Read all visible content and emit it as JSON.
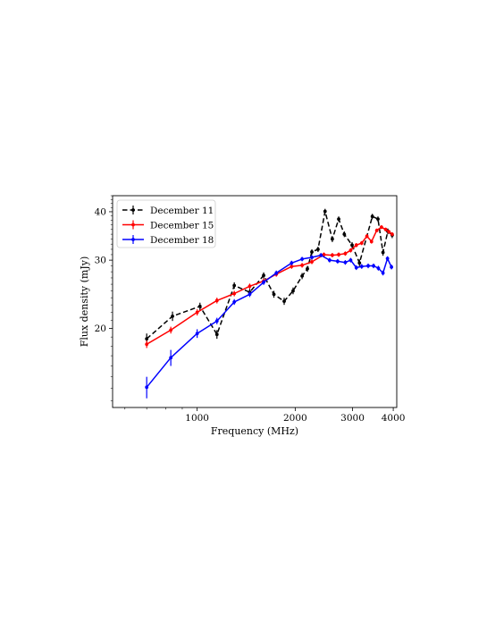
{
  "chart_data": {
    "type": "line",
    "title": "",
    "xlabel": "Frequency (MHz)",
    "ylabel": "Flux density (mJy)",
    "xscale": "log",
    "yscale": "log",
    "xlim": [
      550,
      4100
    ],
    "ylim": [
      12.5,
      44
    ],
    "xticks": [
      {
        "value": 1000,
        "label": "1000"
      },
      {
        "value": 2000,
        "label": "2000"
      },
      {
        "value": 3000,
        "label": "3000"
      },
      {
        "value": 4000,
        "label": "4000"
      }
    ],
    "yticks": [
      {
        "value": 20,
        "label": "20"
      },
      {
        "value": 30,
        "label": "30"
      },
      {
        "value": 40,
        "label": "40"
      }
    ],
    "grid": false,
    "legend_position": "top-left",
    "series": [
      {
        "name": "December 11",
        "color": "#000000",
        "linestyle": "dashed",
        "x": [
          700,
          840,
          1020,
          1150,
          1300,
          1450,
          1600,
          1720,
          1850,
          1970,
          2100,
          2180,
          2250,
          2350,
          2470,
          2600,
          2720,
          2830,
          2990,
          3150,
          3450,
          3590,
          3720,
          3850,
          3970
        ],
        "y": [
          18.8,
          21.5,
          22.8,
          19.3,
          25.8,
          24.8,
          27.4,
          24.5,
          23.5,
          25.0,
          27.3,
          28.5,
          31.5,
          32.0,
          40.1,
          34.0,
          38.3,
          35.0,
          32.8,
          29.5,
          38.9,
          38.3,
          31.4,
          35.6,
          34.8
        ],
        "yerr": [
          0.6,
          0.6,
          0.5,
          0.5,
          0.5,
          0.5,
          0.5,
          0.5,
          0.5,
          0.5,
          0.5,
          0.5,
          0.5,
          0.5,
          0.6,
          0.6,
          0.6,
          0.6,
          0.6,
          0.6,
          0.6,
          0.6,
          0.6,
          0.6,
          0.6
        ]
      },
      {
        "name": "December 15",
        "color": "#ff0000",
        "linestyle": "solid",
        "x": [
          700,
          830,
          1000,
          1150,
          1300,
          1450,
          1600,
          1750,
          1950,
          2100,
          2250,
          2450,
          2600,
          2720,
          2850,
          2960,
          3080,
          3200,
          3320,
          3430,
          3560,
          3680,
          3790,
          3880,
          3970
        ],
        "y": [
          18.2,
          19.8,
          22.0,
          23.6,
          24.6,
          25.7,
          26.5,
          27.6,
          28.9,
          29.1,
          29.7,
          31.0,
          30.9,
          31.0,
          31.2,
          31.8,
          32.8,
          33.2,
          34.6,
          33.5,
          35.8,
          36.5,
          36.0,
          35.5,
          35.0
        ],
        "yerr": [
          0.4,
          0.4,
          0.4,
          0.4,
          0.4,
          0.4,
          0.4,
          0.4,
          0.4,
          0.4,
          0.4,
          0.4,
          0.4,
          0.4,
          0.4,
          0.4,
          0.4,
          0.4,
          0.4,
          0.4,
          0.4,
          0.4,
          0.4,
          0.4,
          0.4
        ]
      },
      {
        "name": "December 18",
        "color": "#0000ff",
        "linestyle": "solid",
        "x": [
          700,
          830,
          1000,
          1150,
          1300,
          1450,
          1600,
          1750,
          1950,
          2100,
          2250,
          2400,
          2550,
          2700,
          2850,
          2960,
          3080,
          3200,
          3350,
          3480,
          3600,
          3720,
          3840,
          3950
        ],
        "y": [
          14.1,
          16.8,
          19.4,
          20.9,
          23.4,
          24.5,
          26.3,
          27.8,
          29.5,
          30.2,
          30.5,
          30.9,
          30.0,
          29.8,
          29.6,
          30.0,
          28.7,
          28.9,
          29.0,
          29.0,
          28.6,
          27.8,
          30.3,
          28.8
        ],
        "yerr": [
          0.9,
          0.8,
          0.5,
          0.4,
          0.4,
          0.4,
          0.4,
          0.4,
          0.4,
          0.4,
          0.4,
          0.4,
          0.4,
          0.4,
          0.4,
          0.4,
          0.4,
          0.4,
          0.4,
          0.4,
          0.4,
          0.4,
          0.4,
          0.4
        ]
      }
    ]
  }
}
